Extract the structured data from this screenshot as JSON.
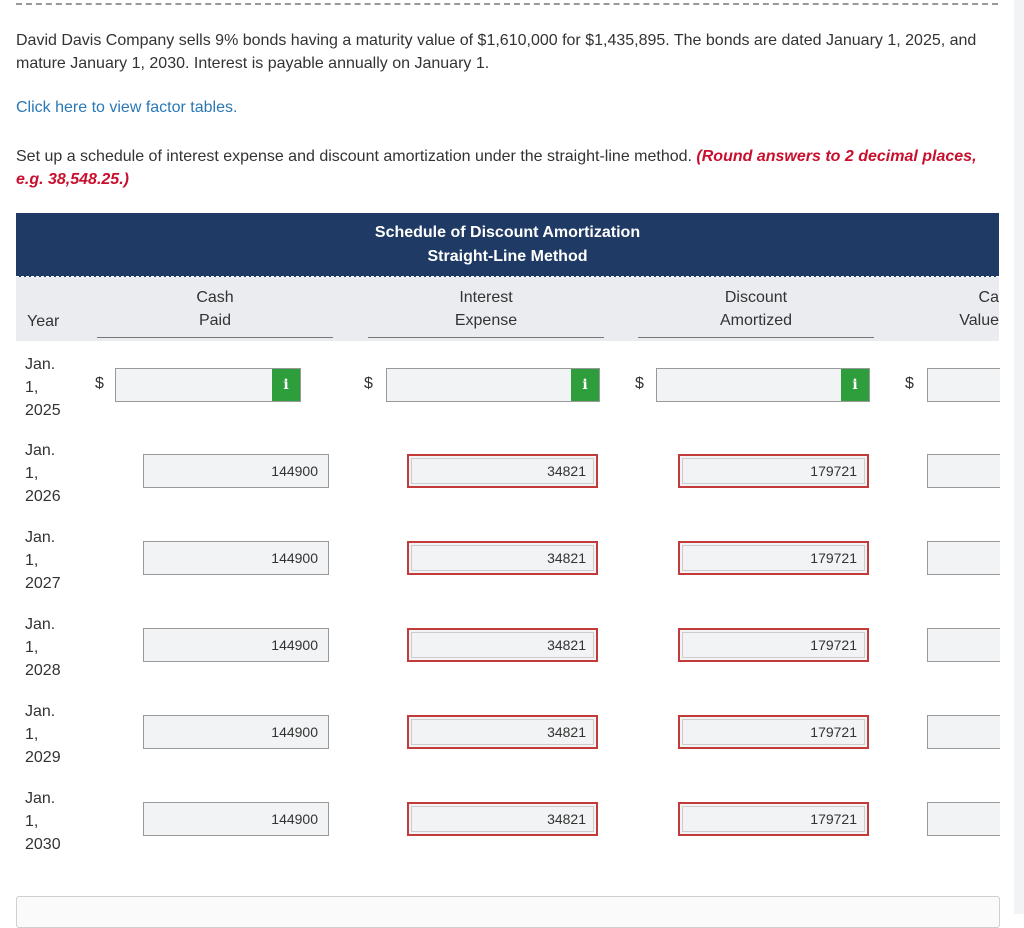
{
  "problem": {
    "text": "David Davis Company sells 9% bonds having a maturity value of $1,610,000 for $1,435,895. The bonds are dated January 1, 2025, and mature January 1, 2030. Interest is payable annually on January 1."
  },
  "factor_link": "Click here to view factor tables.",
  "instruction": {
    "text": "Set up a schedule of interest expense and discount amortization under the straight-line method. ",
    "note": "(Round answers to 2 decimal places, e.g. 38,548.25.)"
  },
  "table": {
    "title_line1": "Schedule of Discount Amortization",
    "title_line2": "Straight-Line Method",
    "headers": {
      "year": "Year",
      "cash_1": "Cash",
      "cash_2": "Paid",
      "interest_1": "Interest",
      "interest_2": "Expense",
      "discount_1": "Discount",
      "discount_2": "Amortized",
      "carrying_1": "Ca",
      "carrying_2": "Value"
    },
    "currency": "$",
    "info_icon": "i",
    "rows": [
      {
        "year_1": "Jan.",
        "year_2": "1,",
        "year_3": "2025",
        "cash_paid": "",
        "interest_expense": "",
        "discount_amortized": "",
        "carrying_value": ""
      },
      {
        "year_1": "Jan.",
        "year_2": "1,",
        "year_3": "2026",
        "cash_paid": "144900",
        "interest_expense": "34821",
        "discount_amortized": "179721",
        "carrying_value": ""
      },
      {
        "year_1": "Jan.",
        "year_2": "1,",
        "year_3": "2027",
        "cash_paid": "144900",
        "interest_expense": "34821",
        "discount_amortized": "179721",
        "carrying_value": ""
      },
      {
        "year_1": "Jan.",
        "year_2": "1,",
        "year_3": "2028",
        "cash_paid": "144900",
        "interest_expense": "34821",
        "discount_amortized": "179721",
        "carrying_value": ""
      },
      {
        "year_1": "Jan.",
        "year_2": "1,",
        "year_3": "2029",
        "cash_paid": "144900",
        "interest_expense": "34821",
        "discount_amortized": "179721",
        "carrying_value": ""
      },
      {
        "year_1": "Jan.",
        "year_2": "1,",
        "year_3": "2030",
        "cash_paid": "144900",
        "interest_expense": "34821",
        "discount_amortized": "179721",
        "carrying_value": ""
      }
    ]
  },
  "colors": {
    "header_bg": "#1f3a64",
    "link": "#2a78b5",
    "note": "#c8102e",
    "error_border": "#c23a3a",
    "info_button": "#2e9e3c"
  }
}
